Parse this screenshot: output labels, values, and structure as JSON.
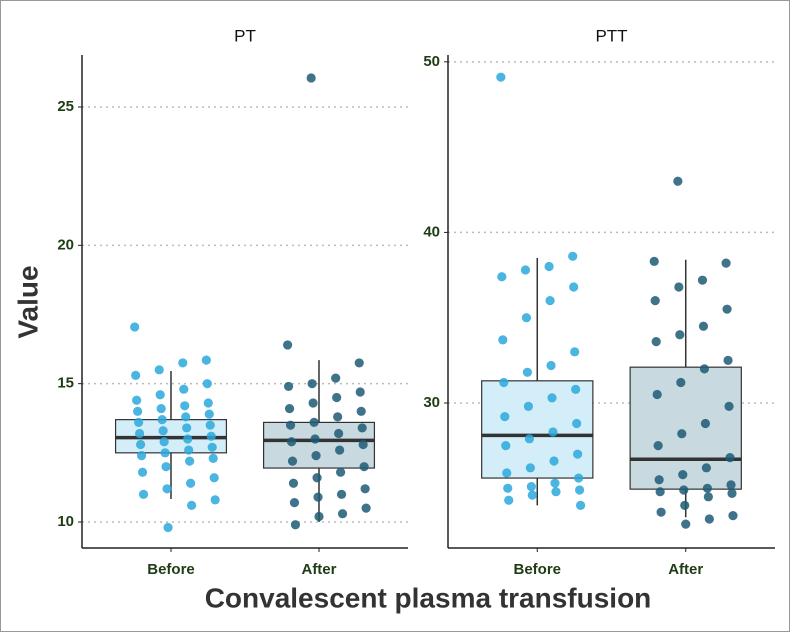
{
  "x_label": "Convalescent plasma transfusion",
  "y_label": "Value",
  "chart_data": [
    {
      "type": "box",
      "title": "PT",
      "categories": [
        "Before",
        "After"
      ],
      "colors": [
        "#2aa8dc",
        "#1d5b74"
      ],
      "box_fills": [
        "#d3eef9",
        "#c8d9e0"
      ],
      "ylim": [
        9.06,
        26.88
      ],
      "yticks": [
        10,
        15,
        20,
        25
      ],
      "grid": true,
      "boxes": [
        {
          "whisker_low": 10.83,
          "q1": 12.5,
          "median": 13.05,
          "q3": 13.7,
          "whisker_high": 15.46
        },
        {
          "whisker_low": 10.0,
          "q1": 11.95,
          "median": 12.95,
          "q3": 13.6,
          "whisker_high": 15.85
        }
      ],
      "points": [
        [
          17.05,
          15.85,
          15.75,
          15.5,
          15.3,
          15.0,
          14.8,
          14.6,
          14.4,
          14.3,
          14.2,
          14.1,
          14.0,
          13.9,
          13.8,
          13.7,
          13.6,
          13.5,
          13.4,
          13.3,
          13.2,
          13.1,
          13.0,
          12.9,
          12.8,
          12.7,
          12.6,
          12.5,
          12.4,
          12.3,
          12.2,
          12.0,
          11.8,
          11.6,
          11.4,
          11.2,
          11.0,
          10.8,
          10.6,
          9.8
        ],
        [
          26.05,
          16.4,
          15.75,
          15.2,
          15.0,
          14.9,
          14.7,
          14.5,
          14.3,
          14.1,
          14.0,
          13.8,
          13.6,
          13.5,
          13.4,
          13.2,
          13.0,
          12.9,
          12.8,
          12.6,
          12.4,
          12.2,
          12.0,
          11.8,
          11.6,
          11.4,
          11.2,
          11.0,
          10.9,
          10.7,
          10.5,
          10.3,
          10.2,
          9.9
        ]
      ]
    },
    {
      "type": "box",
      "title": "PTT",
      "categories": [
        "Before",
        "After"
      ],
      "colors": [
        "#2aa8dc",
        "#1d5b74"
      ],
      "box_fills": [
        "#d3eef9",
        "#c8d9e0"
      ],
      "ylim": [
        21.5,
        50.4
      ],
      "yticks": [
        30,
        40,
        50
      ],
      "grid": true,
      "boxes": [
        {
          "whisker_low": 24.0,
          "q1": 25.6,
          "median": 28.1,
          "q3": 31.3,
          "whisker_high": 38.5
        },
        {
          "whisker_low": 23.3,
          "q1": 24.95,
          "median": 26.7,
          "q3": 32.1,
          "whisker_high": 38.4
        }
      ],
      "points": [
        [
          49.1,
          38.6,
          38.0,
          37.8,
          37.4,
          36.8,
          36.0,
          35.0,
          33.7,
          33.0,
          32.2,
          31.8,
          31.2,
          30.8,
          30.3,
          29.8,
          29.2,
          28.8,
          28.3,
          27.9,
          27.5,
          27.0,
          26.6,
          26.2,
          25.9,
          25.6,
          25.3,
          25.1,
          25.0,
          24.9,
          24.8,
          24.6,
          24.3,
          24.0
        ],
        [
          43.0,
          38.3,
          38.2,
          37.2,
          36.8,
          36.0,
          35.5,
          34.5,
          34.0,
          33.6,
          32.5,
          32.0,
          31.2,
          30.5,
          29.8,
          28.8,
          28.2,
          27.5,
          26.8,
          26.2,
          25.8,
          25.5,
          25.2,
          25.0,
          24.9,
          24.8,
          24.7,
          24.5,
          24.0,
          23.6,
          23.4,
          23.2,
          22.9
        ]
      ]
    }
  ]
}
